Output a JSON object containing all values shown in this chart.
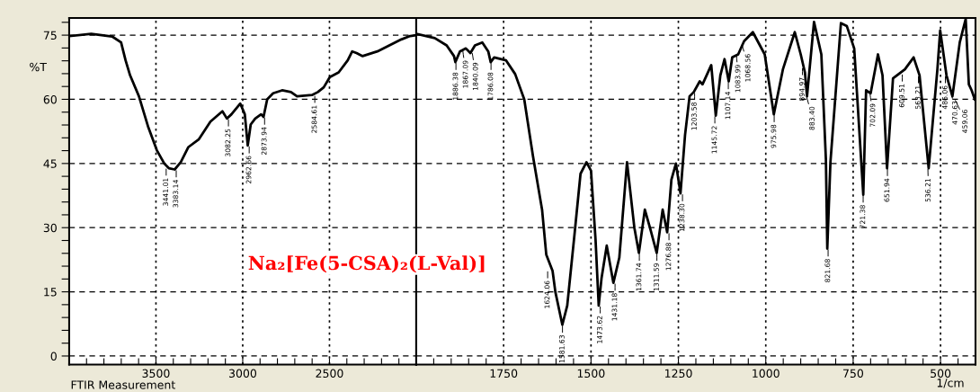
{
  "chart_data": [
    {
      "type": "line",
      "ylabel": "%T",
      "xlim": [
        4000,
        2000
      ],
      "ylim": [
        -2,
        79
      ],
      "grid": true,
      "line_style": "solid",
      "marker": "none",
      "xticks": [
        3500,
        3000,
        2500,
        {
          "value": 3900,
          "label": null
        },
        {
          "value": 3800,
          "label": null
        },
        {
          "value": 3700,
          "label": null
        },
        {
          "value": 3600,
          "label": null
        },
        {
          "value": 3400,
          "label": null
        },
        {
          "value": 3300,
          "label": null
        },
        {
          "value": 3200,
          "label": null
        },
        {
          "value": 3100,
          "label": null
        },
        {
          "value": 2900,
          "label": null
        },
        {
          "value": 2800,
          "label": null
        },
        {
          "value": 2700,
          "label": null
        },
        {
          "value": 2600,
          "label": null
        },
        {
          "value": 2400,
          "label": null
        },
        {
          "value": 2300,
          "label": null
        },
        {
          "value": 2200,
          "label": null
        },
        {
          "value": 2100,
          "label": null
        }
      ],
      "yticks": [
        0,
        15,
        30,
        45,
        60,
        75,
        {
          "value": 3,
          "label": null
        },
        {
          "value": 6,
          "label": null
        },
        {
          "value": 9,
          "label": null
        },
        {
          "value": 12,
          "label": null
        },
        {
          "value": 18,
          "label": null
        },
        {
          "value": 21,
          "label": null
        },
        {
          "value": 24,
          "label": null
        },
        {
          "value": 27,
          "label": null
        },
        {
          "value": 33,
          "label": null
        },
        {
          "value": 36,
          "label": null
        },
        {
          "value": 39,
          "label": null
        },
        {
          "value": 42,
          "label": null
        },
        {
          "value": 48,
          "label": null
        },
        {
          "value": 51,
          "label": null
        },
        {
          "value": 54,
          "label": null
        },
        {
          "value": 57,
          "label": null
        },
        {
          "value": 63,
          "label": null
        },
        {
          "value": 66,
          "label": null
        },
        {
          "value": 69,
          "label": null
        },
        {
          "value": 72,
          "label": null
        },
        {
          "value": 78,
          "label": null
        }
      ],
      "series": [
        {
          "color": "#000000",
          "x": [
            3993,
            3873,
            3753,
            3701,
            3675,
            3649,
            3598,
            3546,
            3495,
            3452,
            3426,
            3392,
            3357,
            3314,
            3254,
            3186,
            3117,
            3091,
            3065,
            3014,
            2988,
            2971,
            2954,
            2928,
            2894,
            2880,
            2859,
            2825,
            2773,
            2722,
            2687,
            2601,
            2567,
            2533,
            2498,
            2447,
            2395,
            2369,
            2344,
            2309,
            2224,
            2155,
            2086,
            2035,
            2000
          ],
          "values": [
            74.8,
            75.3,
            74.7,
            73.3,
            69.1,
            65.6,
            60.7,
            53.7,
            48.1,
            45.0,
            43.9,
            43.6,
            45.3,
            48.8,
            50.6,
            54.8,
            57.2,
            55.5,
            56.5,
            59.0,
            56.5,
            49.2,
            54.1,
            55.5,
            56.5,
            55.9,
            60.0,
            61.4,
            62.1,
            61.7,
            60.7,
            61.0,
            61.7,
            62.8,
            65.2,
            66.3,
            69.1,
            71.2,
            70.8,
            70.1,
            71.2,
            72.6,
            74.0,
            74.8,
            75.0
          ]
        }
      ],
      "annotations": [
        "Na₂[Fe(5-CSA)₂(L-Val)]",
        "FTIR Measurement",
        {
          "text": "3441.01",
          "x": 3441.01,
          "y": 44.0
        },
        {
          "text": "3383.14",
          "x": 3383.14,
          "y": 43.6
        },
        {
          "text": "3082.25",
          "x": 3082.25,
          "y": 55.5
        },
        {
          "text": "2962.66",
          "x": 2962.66,
          "y": 49.2
        },
        {
          "text": "2873.94",
          "x": 2873.94,
          "y": 55.9
        },
        {
          "text": "2584.61",
          "x": 2584.61,
          "y": 61.0
        }
      ]
    },
    {
      "type": "line",
      "xlabel": "1/cm",
      "xlim": [
        2000,
        400
      ],
      "ylim": [
        -2,
        79
      ],
      "grid": true,
      "line_style": "solid",
      "marker": "none",
      "tick_labels": "x",
      "xticks": [
        1750,
        1500,
        1250,
        1000,
        750,
        500,
        {
          "value": 1950,
          "label": null
        },
        {
          "value": 1900,
          "label": null
        },
        {
          "value": 1850,
          "label": null
        },
        {
          "value": 1800,
          "label": null
        },
        {
          "value": 1700,
          "label": null
        },
        {
          "value": 1650,
          "label": null
        },
        {
          "value": 1600,
          "label": null
        },
        {
          "value": 1550,
          "label": null
        },
        {
          "value": 1450,
          "label": null
        },
        {
          "value": 1400,
          "label": null
        },
        {
          "value": 1350,
          "label": null
        },
        {
          "value": 1300,
          "label": null
        },
        {
          "value": 1200,
          "label": null
        },
        {
          "value": 1150,
          "label": null
        },
        {
          "value": 1100,
          "label": null
        },
        {
          "value": 1050,
          "label": null
        },
        {
          "value": 950,
          "label": null
        },
        {
          "value": 900,
          "label": null
        },
        {
          "value": 850,
          "label": null
        },
        {
          "value": 800,
          "label": null
        },
        {
          "value": 700,
          "label": null
        },
        {
          "value": 650,
          "label": null
        },
        {
          "value": 600,
          "label": null
        },
        {
          "value": 550,
          "label": null
        },
        {
          "value": 450,
          "label": null
        }
      ],
      "yticks": [
        0,
        15,
        30,
        45,
        60,
        75
      ],
      "series": [
        {
          "color": "#000000",
          "x": [
            2000,
            1947,
            1913,
            1892,
            1888,
            1875,
            1858,
            1845,
            1832,
            1811,
            1794,
            1787,
            1777,
            1743,
            1717,
            1691,
            1666,
            1640,
            1628,
            1610,
            1602,
            1582,
            1568,
            1547,
            1530,
            1513,
            1500,
            1487,
            1478,
            1470,
            1455,
            1436,
            1419,
            1397,
            1376,
            1363,
            1346,
            1329,
            1312,
            1295,
            1282,
            1270,
            1257,
            1244,
            1231,
            1218,
            1206,
            1189,
            1181,
            1156,
            1143,
            1130,
            1118,
            1106,
            1096,
            1079,
            1062,
            1037,
            1003,
            977,
            951,
            917,
            900,
            888,
            882,
            862,
            841,
            828,
            824,
            815,
            785,
            768,
            747,
            721,
            713,
            700,
            679,
            666,
            653,
            636,
            602,
            577,
            560,
            534,
            509,
            501,
            483,
            466,
            445,
            428,
            419,
            411,
            402
          ],
          "values": [
            75.3,
            74.3,
            72.6,
            70.1,
            68.7,
            71.2,
            71.9,
            70.8,
            72.6,
            73.3,
            71.2,
            68.7,
            69.8,
            69.1,
            65.9,
            60.0,
            46.7,
            34.2,
            23.7,
            19.9,
            15.0,
            7.3,
            11.8,
            28.6,
            42.6,
            45.3,
            43.3,
            27.2,
            11.8,
            18.1,
            25.8,
            17.1,
            23.0,
            45.3,
            30.0,
            24.1,
            34.2,
            29.3,
            24.1,
            34.2,
            28.9,
            41.2,
            45.0,
            38.0,
            51.6,
            60.7,
            61.7,
            64.2,
            63.5,
            68.0,
            56.2,
            65.6,
            69.4,
            64.2,
            69.8,
            70.5,
            73.6,
            75.7,
            70.5,
            56.5,
            67.0,
            75.7,
            70.5,
            66.3,
            60.7,
            78.1,
            70.5,
            46.0,
            25.1,
            45.3,
            77.8,
            77.1,
            71.9,
            37.7,
            62.1,
            61.4,
            70.5,
            65.6,
            43.9,
            64.9,
            67.0,
            69.8,
            65.6,
            43.9,
            67.0,
            76.1,
            65.6,
            60.7,
            73.3,
            78.8,
            63.5,
            62.1,
            60.0
          ]
        }
      ],
      "annotations": [
        {
          "text": "1886.38",
          "x": 1886.38,
          "y": 68.7
        },
        {
          "text": "1867.09",
          "x": 1867.09,
          "y": 71.5
        },
        {
          "text": "1840.09",
          "x": 1840.09,
          "y": 71.0
        },
        {
          "text": "1786.08",
          "x": 1786.08,
          "y": 68.7
        },
        {
          "text": "1624.06",
          "x": 1624.06,
          "y": 20.0
        },
        {
          "text": "1581.63",
          "x": 1581.63,
          "y": 7.3
        },
        {
          "text": "1473.62",
          "x": 1473.62,
          "y": 11.8
        },
        {
          "text": "1431.18",
          "x": 1431.18,
          "y": 17.1
        },
        {
          "text": "1361.74",
          "x": 1361.74,
          "y": 24.1
        },
        {
          "text": "1311.59",
          "x": 1311.59,
          "y": 24.1
        },
        {
          "text": "1276.88",
          "x": 1276.88,
          "y": 28.9
        },
        {
          "text": "1238.30",
          "x": 1238.3,
          "y": 38.0
        },
        {
          "text": "1203.58",
          "x": 1203.58,
          "y": 61.7
        },
        {
          "text": "1145.72",
          "x": 1145.72,
          "y": 56.2
        },
        {
          "text": "1107.14",
          "x": 1107.14,
          "y": 64.2
        },
        {
          "text": "1083.99",
          "x": 1083.99,
          "y": 70.5
        },
        {
          "text": "1068.56",
          "x": 1068.56,
          "y": 73.0
        },
        {
          "text": "975.98",
          "x": 975.98,
          "y": 56.5
        },
        {
          "text": "894.97",
          "x": 894.97,
          "y": 67.5
        },
        {
          "text": "883.40",
          "x": 883.4,
          "y": 60.7
        },
        {
          "text": "821.68",
          "x": 821.68,
          "y": 25.1
        },
        {
          "text": "721.38",
          "x": 721.38,
          "y": 37.7
        },
        {
          "text": "702.09",
          "x": 702.09,
          "y": 61.4
        },
        {
          "text": "651.94",
          "x": 651.94,
          "y": 43.9
        },
        {
          "text": "609.51",
          "x": 609.51,
          "y": 66.0
        },
        {
          "text": "563.21",
          "x": 563.21,
          "y": 65.6
        },
        {
          "text": "536.21",
          "x": 536.21,
          "y": 43.9
        },
        {
          "text": "486.06",
          "x": 486.06,
          "y": 65.6
        },
        {
          "text": "470.63",
          "x": 470.63,
          "y": 62.0
        },
        {
          "text": "459.06",
          "x": 459.06,
          "y": 60.0
        }
      ]
    }
  ]
}
